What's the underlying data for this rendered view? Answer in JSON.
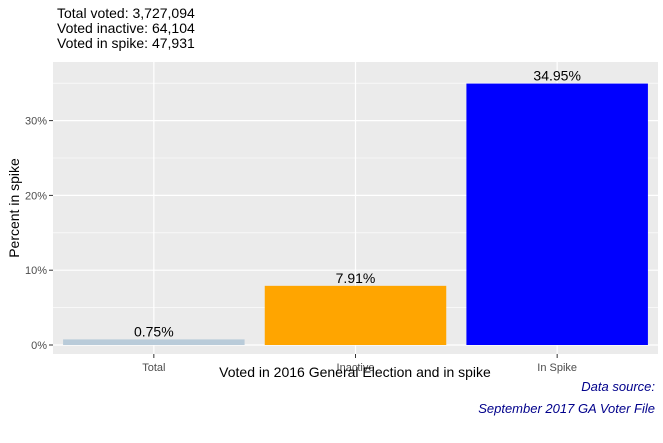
{
  "colors": {
    "panel": "#EBEBEB",
    "grid": "#FFFFFF",
    "caption": "#00008B",
    "axis_text": "#4D4D4D",
    "bars": [
      "#B9CBD9",
      "#FFA500",
      "#0000FF"
    ]
  },
  "chart_data": {
    "type": "bar",
    "subtitle_lines": [
      "Total voted: 3,727,094",
      "Voted inactive: 64,104",
      "Voted in spike: 47,931"
    ],
    "xlabel": "Voted in 2016 General Election and in spike",
    "ylabel": "Percent in spike",
    "categories": [
      "Total",
      "Inactive",
      "In Spike"
    ],
    "values": [
      0.75,
      7.91,
      34.95
    ],
    "data_labels": [
      "0.75%",
      "7.91%",
      "34.95%"
    ],
    "ylim": [
      0,
      36.7
    ],
    "yticks": [
      0,
      10,
      20,
      30
    ],
    "ytick_labels": [
      "0%",
      "10%",
      "20%",
      "30%"
    ],
    "grid": true,
    "legend": "none",
    "caption_lines": [
      "Data source:",
      "September 2017 GA Voter File"
    ]
  }
}
